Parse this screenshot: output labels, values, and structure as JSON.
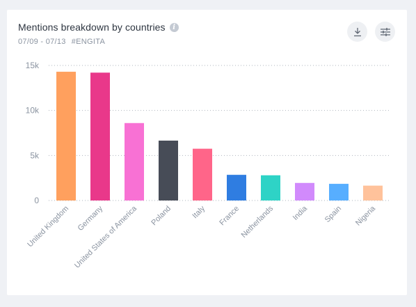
{
  "widget": {
    "title": "Mentions breakdown by countries",
    "date_range": "07/09 - 07/13",
    "tag": "#ENGITA",
    "info_icon": "info-icon",
    "download_icon": "download-icon",
    "settings_icon": "sliders-icon"
  },
  "chart_data": {
    "type": "bar",
    "title": "Mentions breakdown by countries",
    "xlabel": "",
    "ylabel": "",
    "ylim": [
      0,
      15000
    ],
    "yticks": [
      0,
      5000,
      10000,
      15000
    ],
    "ytick_labels": [
      "0",
      "5k",
      "10k",
      "15k"
    ],
    "grid": true,
    "legend": "none",
    "categories": [
      "United Kingdom",
      "Germany",
      "United States of America",
      "Poland",
      "Italy",
      "France",
      "Netherlands",
      "India",
      "Spain",
      "Nigeria"
    ],
    "values": [
      14300,
      14200,
      8600,
      6650,
      5750,
      2850,
      2800,
      1950,
      1850,
      1650
    ],
    "colors": [
      "#ffa05e",
      "#e9388a",
      "#f871d4",
      "#474c57",
      "#ff6589",
      "#2f7de1",
      "#2ed3c6",
      "#d18afc",
      "#57aeff",
      "#ffc29b"
    ]
  }
}
